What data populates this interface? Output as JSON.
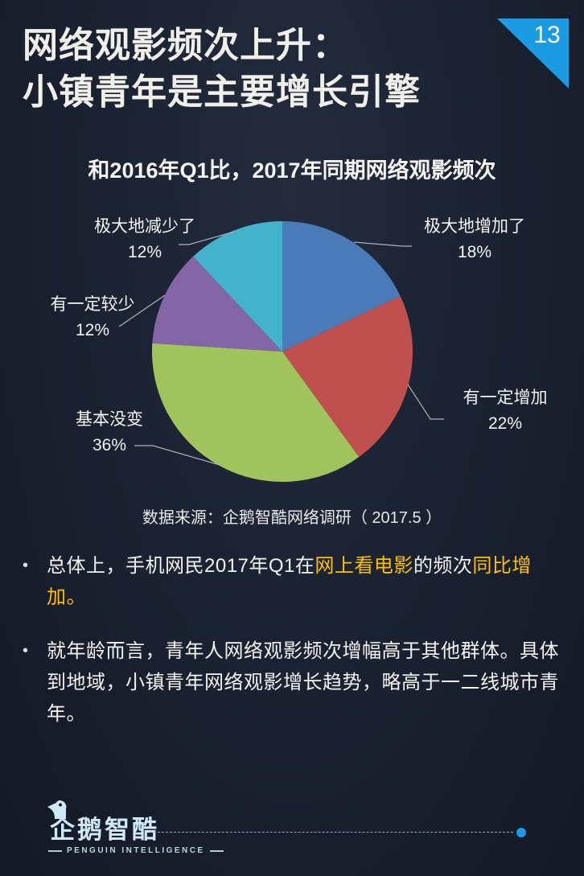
{
  "page": {
    "number": "13"
  },
  "header": {
    "title_line1": "网络观影频次上升：",
    "title_line2": "小镇青年是主要增长引擎"
  },
  "chart_data": {
    "type": "pie",
    "title": "和2016年Q1比，2017年同期网络观影频次",
    "unit": "%",
    "direction": "clockwise",
    "start_angle_deg": 0,
    "slices": [
      {
        "label": "极大地增加了",
        "value": 18,
        "color": "#4a7ab8"
      },
      {
        "label": "有一定增加",
        "value": 22,
        "color": "#c0504d"
      },
      {
        "label": "基本没变",
        "value": 36,
        "color": "#a1c35e"
      },
      {
        "label": "有一定较少",
        "value": 12,
        "color": "#8465a5"
      },
      {
        "label": "极大地减少了",
        "value": 12,
        "color": "#45b2cc"
      }
    ],
    "source": "数据来源：企鹅智酷网络调研（ 2017.5 ）"
  },
  "bullets": {
    "marker": "•",
    "items": [
      {
        "segments": [
          {
            "text": "总体上，手机网民2017年Q1在",
            "highlight": false
          },
          {
            "text": "网上看电影",
            "highlight": true
          },
          {
            "text": "的频次",
            "highlight": false
          },
          {
            "text": "同比增加。",
            "highlight": true
          }
        ]
      },
      {
        "segments": [
          {
            "text": "就年龄而言，青年人网络观影频次增幅高于其他群体。具体到地域，小镇青年网络观影增长趋势，略高于一二线城市青年。",
            "highlight": false
          }
        ]
      }
    ]
  },
  "footer": {
    "logo_text": "企鹅智酷",
    "logo_subtext": "PENGUIN INTELLIGENCE"
  },
  "colors": {
    "accent": "#1b9ce2",
    "highlight": "#ffc000",
    "logo": "#cfe9fa",
    "background": "#1a2130"
  }
}
